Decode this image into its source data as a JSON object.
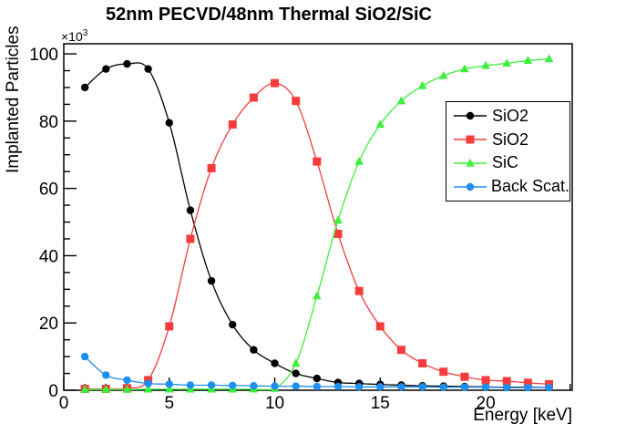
{
  "chart_data": {
    "type": "line",
    "title": "52nm PECVD/48nm Thermal SiO2/SiC",
    "xlabel": "Energy [keV]",
    "ylabel": "Implanted Particles",
    "y_multiplier_base": "×10",
    "y_multiplier_exp": "3",
    "xlim": [
      0,
      24.1
    ],
    "ylim": [
      0,
      103
    ],
    "x_major_ticks": [
      0,
      5,
      10,
      15,
      20
    ],
    "x_minor_step": 1,
    "y_major_ticks": [
      0,
      20,
      40,
      60,
      80,
      100
    ],
    "y_minor_step": 5,
    "grid": false,
    "legend_position": "right",
    "x": [
      1,
      2,
      3,
      4,
      5,
      6,
      7,
      8,
      9,
      10,
      11,
      12,
      13,
      14,
      15,
      16,
      17,
      18,
      19,
      20,
      21,
      22,
      23
    ],
    "series": [
      {
        "name": "SiO2",
        "color": "#000000",
        "marker": "circle",
        "values": [
          90,
          95.5,
          97,
          95.5,
          79.5,
          53.5,
          32.5,
          19.5,
          12,
          8,
          5,
          3.5,
          2.3,
          2,
          1.7,
          1.5,
          1.3,
          1.2,
          1.1,
          1,
          0.9,
          0.9,
          0.8
        ]
      },
      {
        "name": "SiO2",
        "color": "#f53c3c",
        "marker": "square",
        "values": [
          0.4,
          0.4,
          0.6,
          3,
          19,
          45,
          66,
          79,
          87,
          91.3,
          86,
          68,
          46.5,
          29.5,
          19,
          12,
          8,
          5.5,
          4,
          3,
          2.7,
          2.2,
          1.8
        ]
      },
      {
        "name": "SiC",
        "color": "#3cef3c",
        "marker": "triangle",
        "values": [
          0.2,
          0.2,
          0.2,
          0.3,
          0.3,
          0.3,
          0.3,
          0.3,
          0.3,
          0.5,
          8,
          28,
          50.5,
          68,
          79,
          86,
          90.5,
          93.5,
          95.5,
          96.5,
          97.2,
          98,
          98.5
        ]
      },
      {
        "name": "Back Scat.",
        "color": "#1e8ef0",
        "marker": "circle",
        "values": [
          10,
          4.5,
          3,
          2,
          1.8,
          1.5,
          1.5,
          1.4,
          1.3,
          1.2,
          1.2,
          1.1,
          1.1,
          1,
          1,
          1,
          1,
          0.9,
          0.9,
          0.9,
          0.8,
          0.8,
          0.8
        ]
      }
    ],
    "legend_entries": [
      "SiO2",
      "SiO2",
      "SiC",
      "Back Scat."
    ]
  }
}
